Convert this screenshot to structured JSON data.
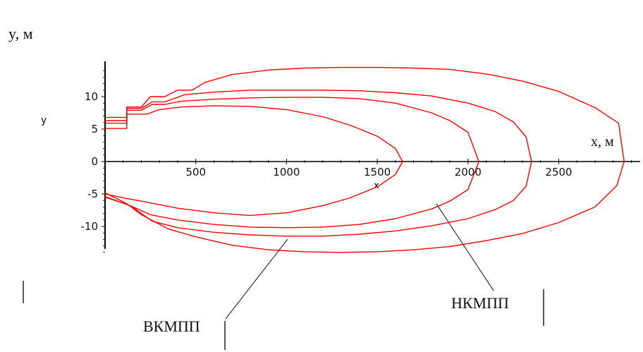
{
  "chart_data": {
    "type": "line",
    "top_label": "y, м",
    "axis_y_label": "y",
    "axis_x_label": "x",
    "axis_x_unit_label": "x, м",
    "x_ticks": [
      500,
      1000,
      1500,
      2000,
      2500
    ],
    "y_ticks": [
      10,
      5,
      0,
      -5,
      -10
    ],
    "xlim": [
      0,
      2900
    ],
    "ylim": [
      -14,
      15
    ],
    "grid": false,
    "legend": "none",
    "annotations": [
      {
        "text": "ВКМПП",
        "target": "series 3"
      },
      {
        "text": "НКМПП",
        "target": "series 2"
      }
    ],
    "line_color": "#ff0000",
    "series": [
      {
        "x": [
          0,
          120,
          120,
          230,
          300,
          420,
          600,
          800,
          1000,
          1200,
          1350,
          1500,
          1600,
          1640,
          1600,
          1500,
          1350,
          1200,
          1000,
          800,
          600,
          400,
          200,
          120,
          0
        ],
        "y": [
          5.1,
          5.1,
          7.3,
          7.3,
          8.0,
          8.4,
          8.6,
          8.5,
          8.0,
          6.9,
          5.6,
          3.9,
          2.0,
          0,
          -2.0,
          -3.9,
          -5.6,
          -6.8,
          -7.9,
          -8.3,
          -7.9,
          -7.2,
          -6.1,
          -5.7,
          -5.0
        ]
      },
      {
        "x": [
          0,
          120,
          120,
          200,
          260,
          330,
          420,
          600,
          800,
          1000,
          1200,
          1400,
          1600,
          1800,
          1900,
          2000,
          2060,
          2000,
          1900,
          1800,
          1600,
          1400,
          1200,
          1000,
          800,
          600,
          400,
          250,
          130,
          0
        ],
        "y": [
          5.9,
          5.9,
          7.9,
          7.9,
          8.8,
          8.8,
          9.3,
          9.6,
          9.8,
          9.9,
          9.9,
          9.7,
          9.0,
          7.5,
          6.3,
          4.5,
          0,
          -4.3,
          -6.1,
          -7.3,
          -8.8,
          -9.7,
          -10.1,
          -10.2,
          -10.1,
          -9.7,
          -9.0,
          -8.2,
          -6.7,
          -5.5
        ]
      },
      {
        "x": [
          0,
          120,
          120,
          200,
          260,
          330,
          440,
          600,
          800,
          1000,
          1200,
          1400,
          1600,
          1800,
          2000,
          2150,
          2250,
          2320,
          2350,
          2320,
          2250,
          2150,
          2000,
          1800,
          1600,
          1400,
          1200,
          1000,
          800,
          600,
          400,
          260,
          140,
          0
        ],
        "y": [
          6.3,
          6.3,
          8.2,
          8.2,
          9.2,
          9.2,
          10.3,
          10.7,
          11.0,
          11.0,
          11.0,
          10.9,
          10.6,
          10.1,
          9.0,
          7.7,
          6.1,
          3.8,
          0,
          -3.8,
          -6.0,
          -7.4,
          -8.8,
          -9.9,
          -10.7,
          -11.2,
          -11.5,
          -11.5,
          -11.3,
          -10.9,
          -10.2,
          -9.2,
          -6.8,
          -5.4
        ]
      },
      {
        "x": [
          0,
          120,
          120,
          200,
          250,
          330,
          400,
          480,
          550,
          700,
          900,
          1100,
          1300,
          1500,
          1700,
          1900,
          2100,
          2300,
          2500,
          2700,
          2830,
          2860,
          2820,
          2700,
          2500,
          2300,
          2100,
          1900,
          1700,
          1500,
          1300,
          1100,
          900,
          700,
          500,
          350,
          200,
          120,
          0
        ],
        "y": [
          6.8,
          6.8,
          8.4,
          8.4,
          10.0,
          10.0,
          11.0,
          11.0,
          12.2,
          13.4,
          14.1,
          14.4,
          14.5,
          14.5,
          14.4,
          14.2,
          13.5,
          12.4,
          10.8,
          8.3,
          5.9,
          0,
          -3.7,
          -7.0,
          -9.4,
          -11.1,
          -12.2,
          -13.1,
          -13.6,
          -13.9,
          -14.0,
          -13.9,
          -13.6,
          -12.9,
          -11.6,
          -10.4,
          -8.2,
          -6.5,
          -4.8
        ]
      }
    ]
  }
}
